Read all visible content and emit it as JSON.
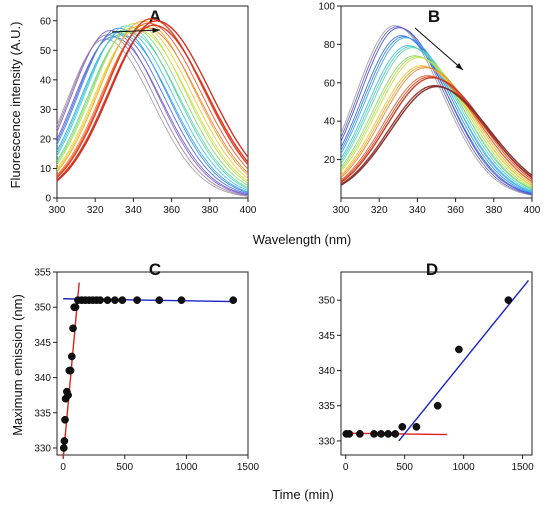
{
  "figure": {
    "ylabel_top": "Fluorescence intensity (A.U.)",
    "xlabel_top": "Wavelength (nm)",
    "ylabel_bottom": "Maximum emission (nm)",
    "xlabel_bottom": "Time (min)"
  },
  "chart_data": [
    {
      "type": "line",
      "panel": "A",
      "xlim": [
        300,
        400
      ],
      "ylim": [
        0,
        65
      ],
      "xticks": [
        300,
        320,
        340,
        360,
        380,
        400
      ],
      "yticks": [
        0,
        10,
        20,
        30,
        40,
        50,
        60
      ],
      "curve_shape": {
        "peak_wavelength_start": 325,
        "peak_wavelength_end": 352,
        "peak_intensity_start": 55,
        "peak_intensity_end": 60
      },
      "series_colors": [
        "#a0a0a0",
        "#9a7fb3",
        "#8b5fbf",
        "#6b5ecf",
        "#4b6bdd",
        "#3a86e8",
        "#34a6f0",
        "#3ec3e6",
        "#4bd2c2",
        "#62d79a",
        "#84dc6f",
        "#aee04e",
        "#d6e03a",
        "#f0c834",
        "#f6a02f",
        "#f47a2a",
        "#ee5323",
        "#e33b1e",
        "#d8301c",
        "#cf2a1a"
      ],
      "annotation": "arrow pointing toward longer wavelength"
    },
    {
      "type": "line",
      "panel": "B",
      "xlim": [
        300,
        400
      ],
      "ylim": [
        0,
        100
      ],
      "xticks": [
        300,
        320,
        340,
        360,
        380,
        400
      ],
      "yticks": [
        20,
        40,
        60,
        80,
        100
      ],
      "curve_shape": {
        "peak_wavelength_start": 328,
        "peak_wavelength_end": 350,
        "peak_intensity_start": 91,
        "peak_intensity_end": 58
      },
      "series_colors": [
        "#a0a0a0",
        "#6c5fbf",
        "#4050d6",
        "#3567e3",
        "#3484ea",
        "#36a2ef",
        "#3ebde6",
        "#4ccfc6",
        "#63d69f",
        "#83dc73",
        "#a8df52",
        "#cede3d",
        "#ecc935",
        "#f5a531",
        "#f2802c",
        "#e85a25",
        "#d9411f",
        "#c4351c",
        "#9c3027",
        "#7a2d2d"
      ],
      "annotation": "arrow pointing down and to the right"
    },
    {
      "type": "scatter",
      "panel": "C",
      "xlim": [
        -50,
        1500
      ],
      "ylim": [
        329,
        355
      ],
      "xticks": [
        0,
        500,
        1000,
        1500
      ],
      "yticks": [
        330,
        335,
        340,
        345,
        350,
        355
      ],
      "x": [
        5,
        10,
        15,
        20,
        30,
        40,
        50,
        60,
        70,
        80,
        90,
        100,
        120,
        150,
        180,
        210,
        240,
        270,
        300,
        360,
        420,
        480,
        600,
        780,
        960,
        1380
      ],
      "y": [
        330,
        331,
        334,
        337,
        338,
        337.5,
        341,
        341,
        343,
        347,
        350,
        350,
        351,
        351,
        351,
        351,
        351,
        351,
        351,
        351,
        351,
        351,
        351,
        351,
        351,
        351
      ],
      "fit_lines": [
        {
          "color": "#e0201c",
          "x": [
            0,
            130
          ],
          "y": [
            328.5,
            353.5
          ]
        },
        {
          "color": "#1a24c8",
          "x": [
            0,
            1380
          ],
          "y": [
            351.2,
            350.8
          ]
        }
      ]
    },
    {
      "type": "scatter",
      "panel": "D",
      "xlim": [
        -40,
        1580
      ],
      "ylim": [
        328,
        354
      ],
      "xticks": [
        0,
        500,
        1000,
        1500
      ],
      "yticks": [
        330,
        335,
        340,
        345,
        350
      ],
      "x": [
        5,
        30,
        120,
        240,
        300,
        360,
        420,
        480,
        600,
        780,
        960,
        1380
      ],
      "y": [
        331,
        331,
        331,
        331,
        331,
        331,
        331,
        332,
        332,
        335,
        343,
        350
      ],
      "fit_lines": [
        {
          "color": "#e0201c",
          "x": [
            0,
            860
          ],
          "y": [
            331.1,
            330.9
          ]
        },
        {
          "color": "#1a24c8",
          "x": [
            450,
            1550
          ],
          "y": [
            330,
            352.8
          ]
        }
      ]
    }
  ]
}
